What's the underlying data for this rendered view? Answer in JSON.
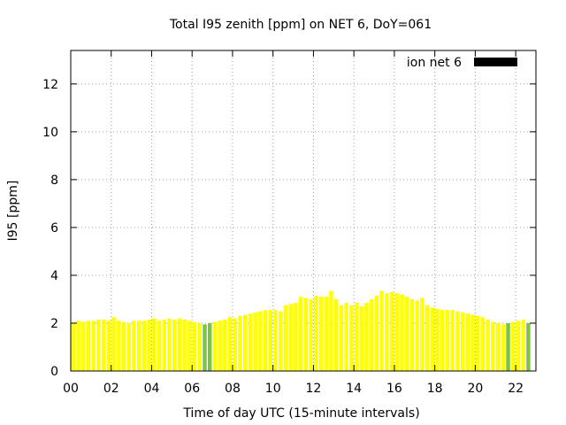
{
  "chart_data": {
    "type": "bar",
    "title": "Total I95 zenith [ppm] on NET 6, DoY=061",
    "xlabel": "Time of day UTC (15-minute intervals)",
    "ylabel": "I95 [ppm]",
    "xlim": [
      0,
      23
    ],
    "ylim": [
      0,
      13.4
    ],
    "xticks": [
      "00",
      "02",
      "04",
      "06",
      "08",
      "10",
      "12",
      "14",
      "16",
      "18",
      "20",
      "22"
    ],
    "yticks": [
      "0",
      "2",
      "4",
      "6",
      "8",
      "10",
      "12"
    ],
    "grid": true,
    "legend_position": "top-right",
    "colors": {
      "bar": "#ffff00",
      "bar_highlight": "#7cc544",
      "legend_swatch": "#000000",
      "grid": "#a0a0a0"
    },
    "series": [
      {
        "name": "ion net 6",
        "x": [
          0.125,
          0.375,
          0.625,
          0.875,
          1.125,
          1.375,
          1.625,
          1.875,
          2.125,
          2.375,
          2.625,
          2.875,
          3.125,
          3.375,
          3.625,
          3.875,
          4.125,
          4.375,
          4.625,
          4.875,
          5.125,
          5.375,
          5.625,
          5.875,
          6.125,
          6.375,
          6.625,
          6.875,
          7.125,
          7.375,
          7.625,
          7.875,
          8.125,
          8.375,
          8.625,
          8.875,
          9.125,
          9.375,
          9.625,
          9.875,
          10.125,
          10.375,
          10.625,
          10.875,
          11.125,
          11.375,
          11.625,
          11.875,
          12.125,
          12.375,
          12.625,
          12.875,
          13.125,
          13.375,
          13.625,
          13.875,
          14.125,
          14.375,
          14.625,
          14.875,
          15.125,
          15.375,
          15.625,
          15.875,
          16.125,
          16.375,
          16.625,
          16.875,
          17.125,
          17.375,
          17.625,
          17.875,
          18.125,
          18.375,
          18.625,
          18.875,
          19.125,
          19.375,
          19.625,
          19.875,
          20.125,
          20.375,
          20.625,
          20.875,
          21.125,
          21.375,
          21.625,
          21.875,
          22.125,
          22.375,
          22.625
        ],
        "values": [
          2.0,
          2.1,
          2.05,
          2.1,
          2.1,
          2.15,
          2.15,
          2.1,
          2.25,
          2.1,
          2.05,
          2.0,
          2.1,
          2.1,
          2.1,
          2.15,
          2.2,
          2.1,
          2.15,
          2.2,
          2.15,
          2.2,
          2.15,
          2.1,
          2.05,
          2.0,
          1.95,
          2.0,
          2.05,
          2.1,
          2.15,
          2.25,
          2.2,
          2.3,
          2.35,
          2.4,
          2.45,
          2.5,
          2.55,
          2.55,
          2.55,
          2.5,
          2.75,
          2.8,
          2.85,
          3.1,
          3.05,
          3.0,
          3.15,
          3.1,
          3.1,
          3.35,
          3.0,
          2.75,
          2.85,
          2.75,
          2.85,
          2.7,
          2.85,
          3.0,
          3.15,
          3.35,
          3.25,
          3.3,
          3.25,
          3.2,
          3.1,
          3.0,
          2.95,
          3.05,
          2.75,
          2.65,
          2.6,
          2.55,
          2.55,
          2.55,
          2.5,
          2.45,
          2.4,
          2.35,
          2.3,
          2.25,
          2.15,
          2.05,
          2.0,
          1.95,
          2.0,
          2.05,
          2.1,
          2.15,
          2.0
        ],
        "highlight_indices": [
          26,
          27,
          86,
          90
        ]
      }
    ]
  }
}
